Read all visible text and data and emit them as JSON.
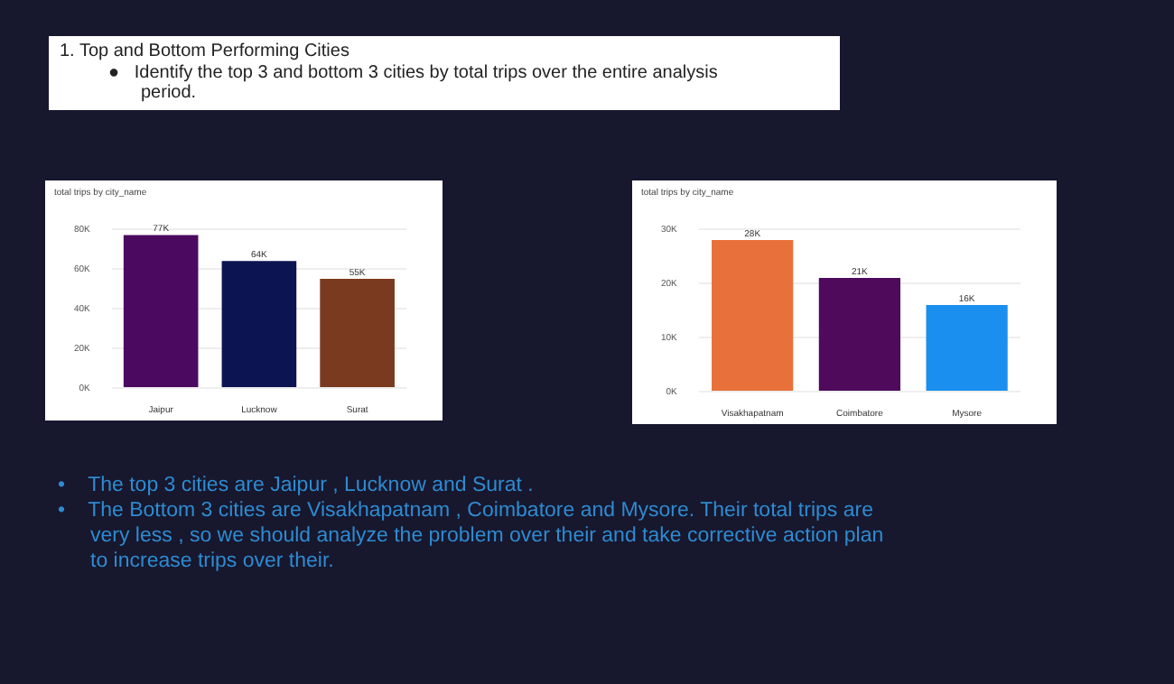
{
  "chart_data": [
    {
      "type": "bar",
      "title": "total trips by city_name",
      "categories": [
        "Jaipur",
        "Lucknow",
        "Surat"
      ],
      "values": [
        77000,
        64000,
        55000
      ],
      "colors": [
        "#4b0a5f",
        "#0c1452",
        "#7a3a1f"
      ],
      "value_labels": [
        "77K",
        "64K",
        "55K"
      ],
      "ylim": [
        0,
        80000
      ],
      "yticks": [
        {
          "value": 0,
          "label": "0K"
        },
        {
          "value": 20000,
          "label": "20K"
        },
        {
          "value": 40000,
          "label": "40K"
        },
        {
          "value": 60000,
          "label": "60K"
        },
        {
          "value": 80000,
          "label": "80K"
        }
      ],
      "grid": "y",
      "legend": false
    },
    {
      "type": "bar",
      "title": "total trips by city_name",
      "categories": [
        "Visakhapatnam",
        "Coimbatore",
        "Mysore"
      ],
      "values": [
        28000,
        21000,
        16000
      ],
      "colors": [
        "#e8703a",
        "#4f0a5c",
        "#1a8ff0"
      ],
      "value_labels": [
        "28K",
        "21K",
        "16K"
      ],
      "ylim": [
        0,
        30000
      ],
      "yticks": [
        {
          "value": 0,
          "label": "0K"
        },
        {
          "value": 10000,
          "label": "10K"
        },
        {
          "value": 20000,
          "label": "20K"
        },
        {
          "value": 30000,
          "label": "30K"
        }
      ],
      "grid": "y",
      "legend": false
    },
    {
      "type": "other",
      "title": "1. Top and Bottom Performing Cities",
      "annotations": [
        "●   Identify the top 3 and bottom 3 cities by total trips over the entire analysis period.",
        "•    The top 3 cities are Jaipur , Lucknow and Surat .",
        "•    The Bottom 3 cities are Visakhapatnam , Coimbatore and Mysore. Their total trips are very less , so we should analyze the problem over their and take corrective action plan to increase trips over their."
      ]
    }
  ]
}
